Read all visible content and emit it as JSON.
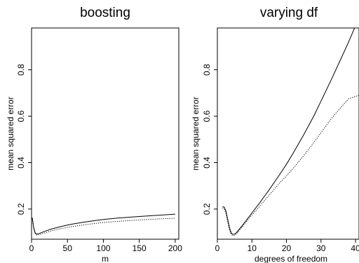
{
  "chart_data": [
    {
      "type": "line",
      "title": "boosting",
      "xlabel": "m",
      "ylabel": "mean squared error",
      "xlim": [
        0,
        205
      ],
      "ylim": [
        0.07,
        0.98
      ],
      "xticks": [
        0,
        50,
        100,
        150,
        200
      ],
      "yticks": [
        0.2,
        0.4,
        0.6,
        0.8
      ],
      "grid": false,
      "series": [
        {
          "style": "solid",
          "x": [
            1,
            3,
            5,
            7,
            10,
            15,
            20,
            30,
            40,
            50,
            60,
            80,
            100,
            120,
            150,
            180,
            200
          ],
          "y": [
            0.163,
            0.12,
            0.098,
            0.092,
            0.094,
            0.1,
            0.106,
            0.116,
            0.124,
            0.131,
            0.137,
            0.147,
            0.155,
            0.161,
            0.168,
            0.174,
            0.178
          ]
        },
        {
          "style": "dotted",
          "x": [
            1,
            3,
            5,
            7,
            10,
            15,
            20,
            30,
            40,
            50,
            60,
            80,
            100,
            120,
            150,
            180,
            200
          ],
          "y": [
            0.158,
            0.115,
            0.094,
            0.088,
            0.089,
            0.094,
            0.099,
            0.108,
            0.115,
            0.121,
            0.126,
            0.135,
            0.142,
            0.147,
            0.153,
            0.158,
            0.16
          ]
        }
      ]
    },
    {
      "type": "line",
      "title": "varying df",
      "xlabel": "degrees of freedom",
      "ylabel": "mean squared error",
      "xlim": [
        0,
        41
      ],
      "ylim": [
        0.07,
        0.98
      ],
      "xticks": [
        0,
        10,
        20,
        30,
        40
      ],
      "yticks": [
        0.2,
        0.4,
        0.6,
        0.8
      ],
      "grid": false,
      "series": [
        {
          "style": "solid",
          "x": [
            1.5,
            2,
            2.5,
            3,
            3.5,
            4,
            4.5,
            5,
            5.5,
            6,
            7,
            8,
            10,
            12,
            15,
            18,
            20,
            22,
            25,
            28,
            30,
            33,
            36,
            38,
            40,
            41
          ],
          "y": [
            0.21,
            0.208,
            0.19,
            0.155,
            0.12,
            0.097,
            0.091,
            0.092,
            0.098,
            0.107,
            0.125,
            0.144,
            0.183,
            0.222,
            0.283,
            0.348,
            0.393,
            0.442,
            0.52,
            0.603,
            0.665,
            0.758,
            0.855,
            0.92,
            0.99,
            1.02
          ]
        },
        {
          "style": "dotted",
          "x": [
            1.5,
            2,
            2.5,
            3,
            3.5,
            4,
            4.5,
            5,
            5.5,
            6,
            7,
            8,
            10,
            12,
            15,
            18,
            20,
            22,
            25,
            28,
            30,
            33,
            36,
            38,
            40,
            41
          ],
          "y": [
            0.205,
            0.2,
            0.18,
            0.145,
            0.11,
            0.09,
            0.085,
            0.087,
            0.093,
            0.102,
            0.12,
            0.138,
            0.175,
            0.208,
            0.26,
            0.312,
            0.343,
            0.376,
            0.43,
            0.488,
            0.528,
            0.59,
            0.642,
            0.675,
            0.685,
            0.69
          ]
        }
      ]
    }
  ]
}
